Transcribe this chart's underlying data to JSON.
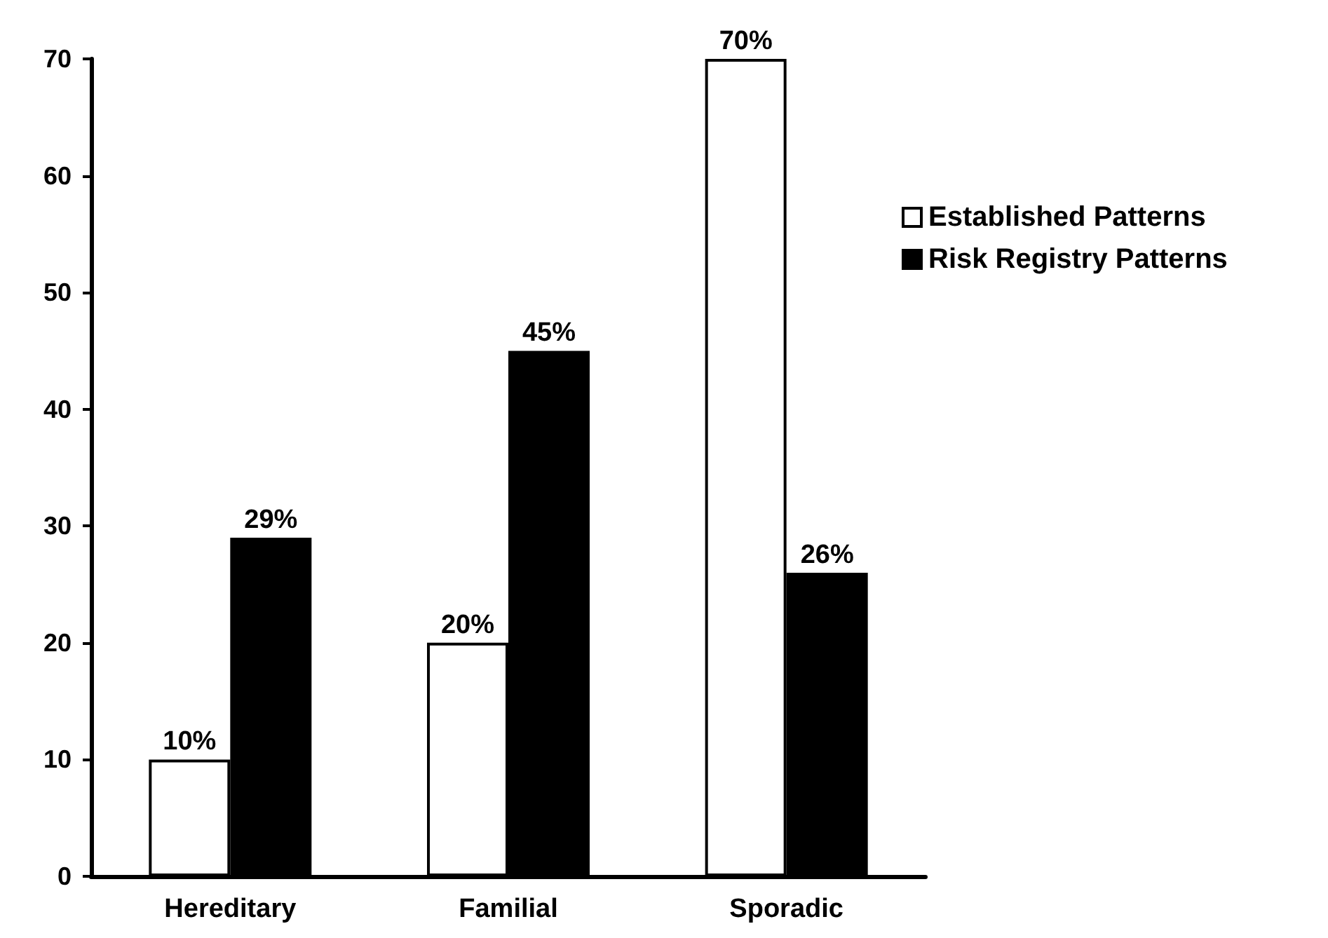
{
  "chart_data": {
    "type": "bar",
    "categories": [
      "Hereditary",
      "Familial",
      "Sporadic"
    ],
    "series": [
      {
        "name": "Established Patterns",
        "color": "#ffffff",
        "values": [
          10,
          20,
          70
        ],
        "value_labels": [
          "10%",
          "20%",
          "70%"
        ]
      },
      {
        "name": "Risk Registry Patterns",
        "color": "#000000",
        "values": [
          29,
          45,
          26
        ],
        "value_labels": [
          "29%",
          "45%",
          "26%"
        ]
      }
    ],
    "ylim": [
      0,
      70
    ],
    "yticks": [
      0,
      10,
      20,
      30,
      40,
      50,
      60,
      70
    ],
    "legend": "right"
  }
}
